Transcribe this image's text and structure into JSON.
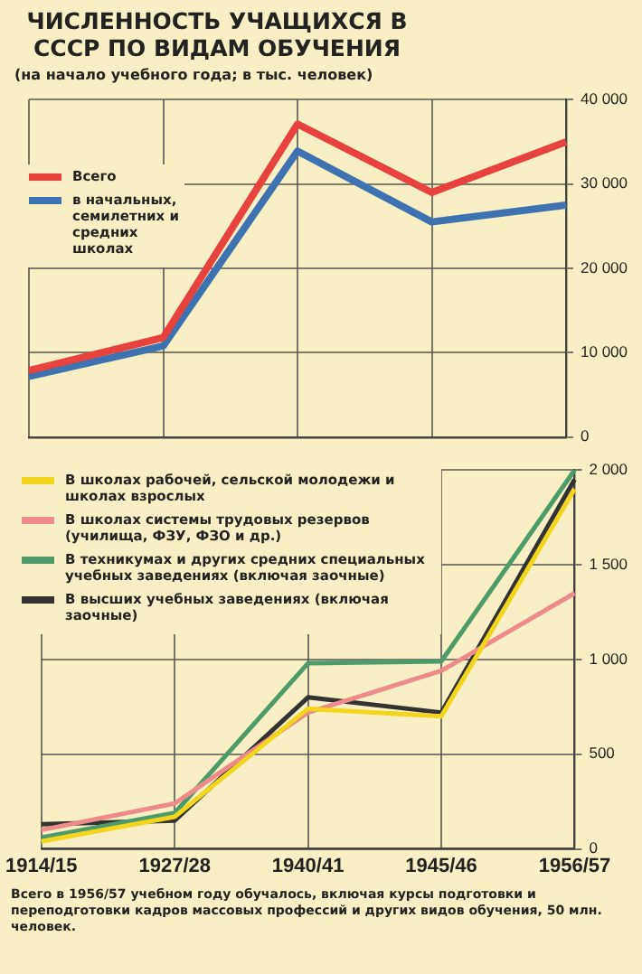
{
  "chart_data": [
    {
      "type": "line",
      "title": "ЧИСЛЕННОСТЬ УЧАЩИХСЯ В СССР ПО ВИДАМ ОБУЧЕНИЯ",
      "subtitle": "(на начало учебного года; в тыс. человек)",
      "categories": [
        "1914/15",
        "1927/28",
        "1940/41",
        "1945/46",
        "1956/57"
      ],
      "series": [
        {
          "name": "Всего",
          "color": "#e8423c",
          "values": [
            7900,
            11800,
            37100,
            29000,
            35000
          ]
        },
        {
          "name": "в начальных, семилетних и средних школах",
          "color": "#3f72b0",
          "values": [
            7200,
            10800,
            33900,
            25500,
            27500
          ]
        }
      ],
      "ylim": [
        0,
        40000
      ],
      "yticks": [
        {
          "value": 0,
          "label": "0"
        },
        {
          "value": 10000,
          "label": "10 000"
        },
        {
          "value": 20000,
          "label": "20 000"
        },
        {
          "value": 30000,
          "label": "30 000"
        },
        {
          "value": 40000,
          "label": "40 000"
        }
      ],
      "grid": true,
      "legend": "left",
      "tick_labels": "y",
      "marker": "none",
      "line_style": "solid"
    },
    {
      "type": "line",
      "categories": [
        "1914/15",
        "1927/28",
        "1940/41",
        "1945/46",
        "1956/57"
      ],
      "series": [
        {
          "name": "В школах рабочей, сельской молодежи и школах взрослых",
          "color": "#f2d51c",
          "values": [
            40,
            170,
            740,
            700,
            1900
          ]
        },
        {
          "name": "В школах системы трудовых резервов (училища, ФЗУ, ФЗО и др.)",
          "color": "#ef8a8a",
          "values": [
            100,
            240,
            720,
            940,
            1350
          ]
        },
        {
          "name": "В техникумах и других средних специальных учебных заведениях (включая заочные)",
          "color": "#4f9a6a",
          "values": [
            60,
            190,
            980,
            990,
            2000
          ]
        },
        {
          "name": "В высших учебных заведениях (включая заочные)",
          "color": "#333333",
          "values": [
            130,
            150,
            800,
            720,
            1950
          ]
        }
      ],
      "ylim": [
        0,
        2000
      ],
      "yticks": [
        {
          "value": 0,
          "label": "0"
        },
        {
          "value": 500,
          "label": "500"
        },
        {
          "value": 1000,
          "label": "1 000"
        },
        {
          "value": 1500,
          "label": "1 500"
        },
        {
          "value": 2000,
          "label": "2 000"
        }
      ],
      "grid": true,
      "legend": "top left",
      "marker": "none",
      "line_style": "solid",
      "annotations": [
        "Всего в 1956/57 учебном году обучалось, включая курсы подготовки и переподготовки кадров массовых профессий и других видов обучения, 50 млн. человек."
      ]
    }
  ]
}
